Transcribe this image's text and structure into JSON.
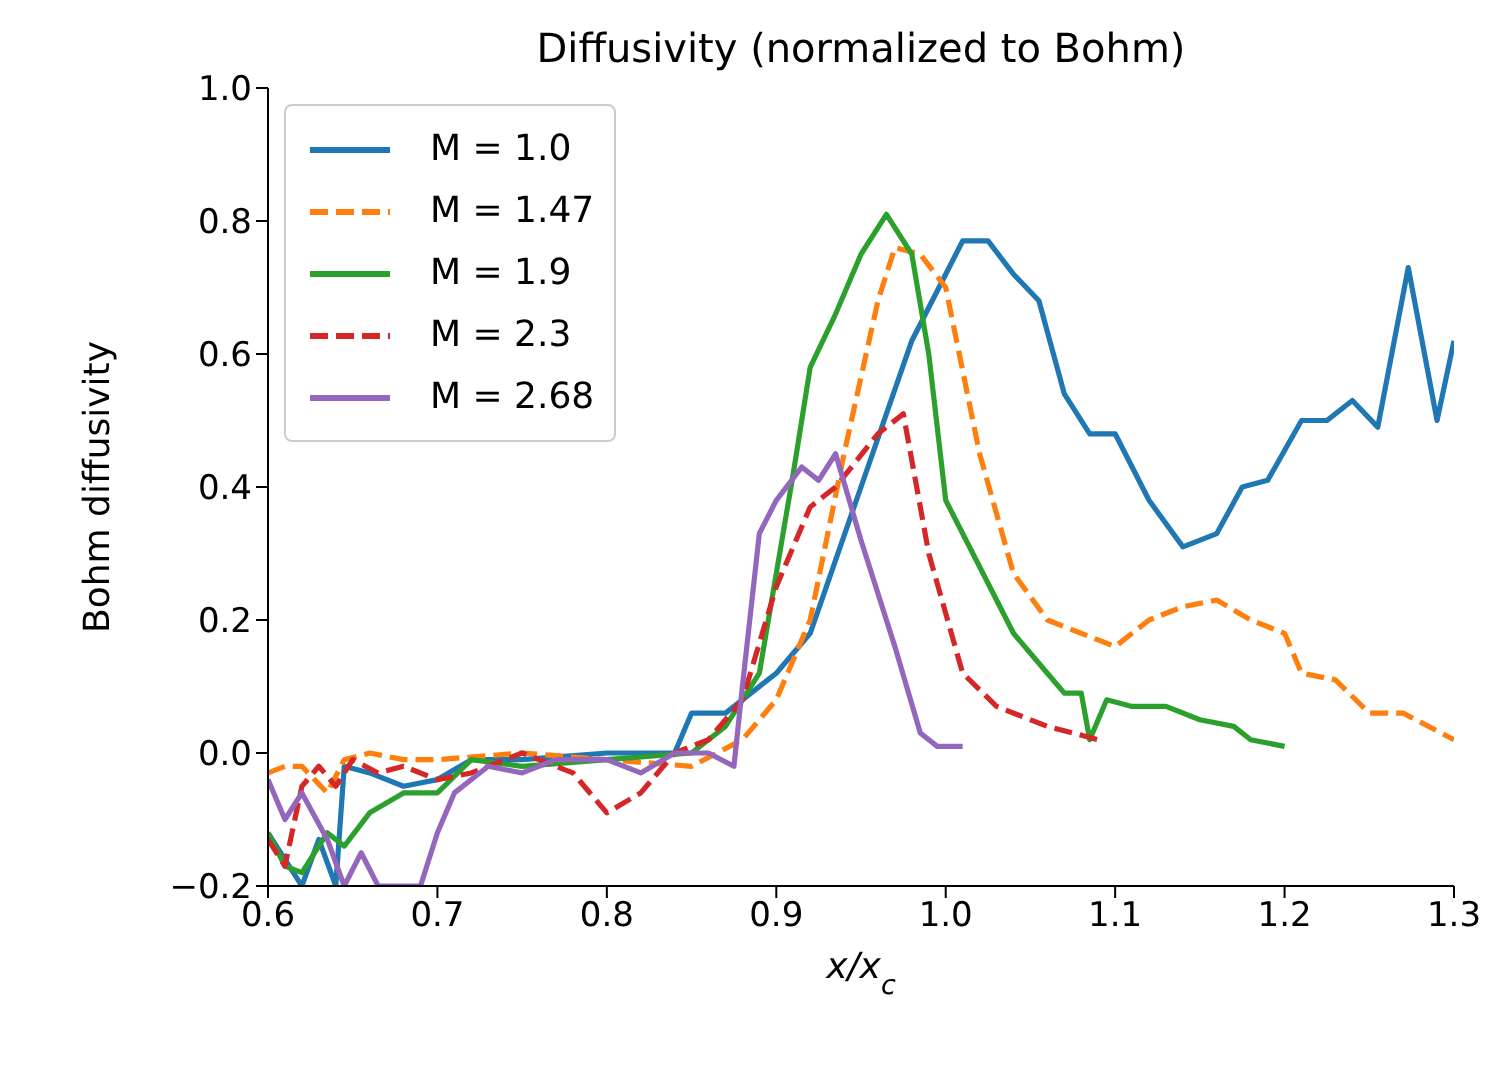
{
  "chart_data": {
    "type": "line",
    "title": "Diffusivity (normalized to Bohm)",
    "xlabel": "x/x$_{c}$",
    "ylabel": "Bohm diffusivity",
    "xlim": [
      0.6,
      1.3
    ],
    "xticks": [
      0.6,
      0.7,
      0.8,
      0.9,
      {
        "value": 1.0,
        "label": "1.0"
      },
      1.1,
      1.2,
      1.3
    ],
    "ylim": [
      -0.2,
      1.0
    ],
    "yticks": [
      {
        "value": -0.2,
        "label": "−0.2"
      },
      {
        "value": 0,
        "label": "0.0"
      },
      {
        "value": 0.2,
        "label": "0.2"
      },
      {
        "value": 0.4,
        "label": "0.4"
      },
      {
        "value": 0.6,
        "label": "0.6"
      },
      {
        "value": 0.8,
        "label": "0.8"
      },
      {
        "value": 1.0,
        "label": "1.0"
      }
    ],
    "grid": false,
    "legend": "top left",
    "marker": "none",
    "series": [
      {
        "name": "M = 1.0",
        "color": "#1f77b4",
        "line_style": "solid",
        "x": [
          0.6,
          0.61,
          0.62,
          0.63,
          0.64,
          0.645,
          0.66,
          0.68,
          0.7,
          0.72,
          0.75,
          0.8,
          0.84,
          0.85,
          0.87,
          0.9,
          0.92,
          0.95,
          0.98,
          1.0,
          1.01,
          1.025,
          1.04,
          1.055,
          1.07,
          1.085,
          1.1,
          1.12,
          1.14,
          1.16,
          1.175,
          1.19,
          1.21,
          1.225,
          1.24,
          1.255,
          1.273,
          1.29,
          1.3
        ],
        "values": [
          -0.12,
          -0.16,
          -0.2,
          -0.13,
          -0.2,
          -0.02,
          -0.03,
          -0.05,
          -0.04,
          -0.01,
          -0.01,
          0.0,
          0.0,
          0.06,
          0.06,
          0.12,
          0.18,
          0.4,
          0.62,
          0.72,
          0.77,
          0.77,
          0.72,
          0.68,
          0.54,
          0.48,
          0.48,
          0.38,
          0.31,
          0.33,
          0.4,
          0.41,
          0.5,
          0.5,
          0.53,
          0.49,
          0.73,
          0.5,
          0.62
        ]
      },
      {
        "name": "M = 1.47",
        "color": "#ff7f0e",
        "line_style": "dashed",
        "x": [
          0.6,
          0.61,
          0.62,
          0.635,
          0.645,
          0.66,
          0.68,
          0.7,
          0.75,
          0.8,
          0.85,
          0.88,
          0.9,
          0.92,
          0.94,
          0.96,
          0.97,
          0.985,
          1.0,
          1.02,
          1.04,
          1.06,
          1.09,
          1.1,
          1.12,
          1.14,
          1.16,
          1.18,
          1.2,
          1.21,
          1.23,
          1.25,
          1.27,
          1.3
        ],
        "values": [
          -0.03,
          -0.02,
          -0.02,
          -0.06,
          -0.01,
          0.0,
          -0.01,
          -0.01,
          0.0,
          -0.01,
          -0.02,
          0.02,
          0.08,
          0.2,
          0.45,
          0.68,
          0.76,
          0.75,
          0.7,
          0.45,
          0.27,
          0.2,
          0.17,
          0.16,
          0.2,
          0.22,
          0.23,
          0.2,
          0.18,
          0.12,
          0.11,
          0.06,
          0.06,
          0.02
        ]
      },
      {
        "name": "M = 1.9",
        "color": "#2ca02c",
        "line_style": "solid",
        "x": [
          0.6,
          0.61,
          0.62,
          0.635,
          0.645,
          0.66,
          0.68,
          0.7,
          0.72,
          0.75,
          0.8,
          0.85,
          0.87,
          0.89,
          0.91,
          0.92,
          0.935,
          0.95,
          0.965,
          0.98,
          0.99,
          1.0,
          1.02,
          1.04,
          1.06,
          1.07,
          1.08,
          1.085,
          1.095,
          1.11,
          1.13,
          1.15,
          1.17,
          1.18,
          1.2
        ],
        "values": [
          -0.12,
          -0.17,
          -0.18,
          -0.12,
          -0.14,
          -0.09,
          -0.06,
          -0.06,
          -0.01,
          -0.02,
          -0.01,
          0.0,
          0.04,
          0.12,
          0.42,
          0.58,
          0.66,
          0.75,
          0.81,
          0.75,
          0.6,
          0.38,
          0.28,
          0.18,
          0.12,
          0.09,
          0.09,
          0.02,
          0.08,
          0.07,
          0.07,
          0.05,
          0.04,
          0.02,
          0.01
        ]
      },
      {
        "name": "M = 2.3",
        "color": "#d62728",
        "line_style": "dashed",
        "x": [
          0.6,
          0.61,
          0.62,
          0.63,
          0.64,
          0.65,
          0.665,
          0.68,
          0.7,
          0.72,
          0.75,
          0.78,
          0.8,
          0.82,
          0.84,
          0.86,
          0.88,
          0.9,
          0.92,
          0.935,
          0.96,
          0.975,
          0.99,
          1.01,
          1.03,
          1.06,
          1.09
        ],
        "values": [
          -0.13,
          -0.17,
          -0.05,
          -0.02,
          -0.05,
          -0.01,
          -0.03,
          -0.02,
          -0.04,
          -0.03,
          0.0,
          -0.03,
          -0.09,
          -0.06,
          0.0,
          0.02,
          0.08,
          0.25,
          0.37,
          0.4,
          0.48,
          0.51,
          0.3,
          0.12,
          0.07,
          0.04,
          0.02
        ]
      },
      {
        "name": "M = 2.68",
        "color": "#9467bd",
        "line_style": "solid",
        "x": [
          0.6,
          0.61,
          0.62,
          0.635,
          0.645,
          0.655,
          0.665,
          0.69,
          0.7,
          0.71,
          0.73,
          0.75,
          0.77,
          0.8,
          0.82,
          0.84,
          0.86,
          0.875,
          0.88,
          0.89,
          0.9,
          0.915,
          0.925,
          0.935,
          0.95,
          0.97,
          0.985,
          0.995,
          1.01
        ],
        "values": [
          -0.04,
          -0.1,
          -0.06,
          -0.13,
          -0.2,
          -0.15,
          -0.2,
          -0.2,
          -0.12,
          -0.06,
          -0.02,
          -0.03,
          -0.01,
          -0.01,
          -0.03,
          0.0,
          0.0,
          -0.02,
          0.1,
          0.33,
          0.38,
          0.43,
          0.41,
          0.45,
          0.32,
          0.16,
          0.03,
          0.01,
          0.01
        ]
      }
    ]
  }
}
